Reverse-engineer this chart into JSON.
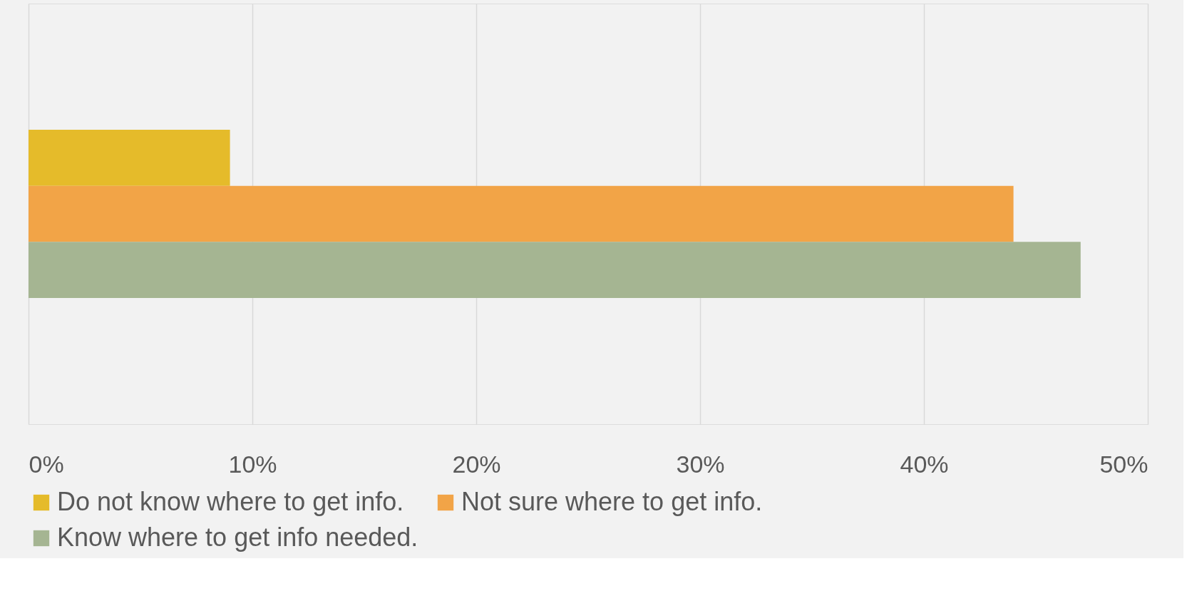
{
  "chart_data": {
    "type": "bar",
    "orientation": "horizontal",
    "categories": [
      null
    ],
    "series": [
      {
        "name": "Do not know where to get info.",
        "color": "#e5bb2a",
        "values": [
          9
        ]
      },
      {
        "name": "Not sure where to get info.",
        "color": "#f2a447",
        "values": [
          44
        ]
      },
      {
        "name": "Know where to get info needed.",
        "color": "#a5b592",
        "values": [
          47
        ]
      }
    ],
    "xlim": [
      0,
      50
    ],
    "xticks": [
      {
        "value": 0,
        "label": "0%"
      },
      {
        "value": 10,
        "label": "10%"
      },
      {
        "value": 20,
        "label": "20%"
      },
      {
        "value": 30,
        "label": "30%"
      },
      {
        "value": 40,
        "label": "40%"
      },
      {
        "value": 50,
        "label": "50%"
      }
    ],
    "grid": "x",
    "legend": "bottom",
    "tick_labels": "x"
  }
}
